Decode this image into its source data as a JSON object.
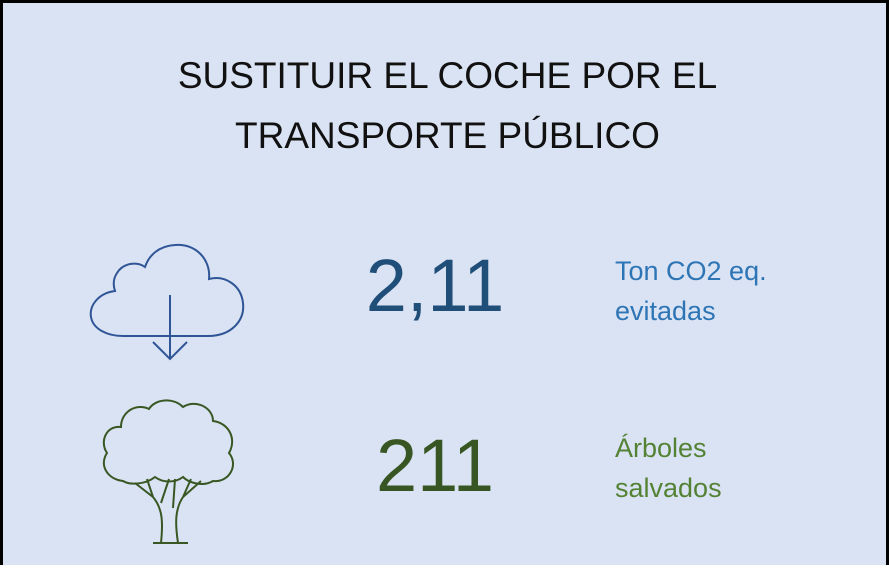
{
  "title": {
    "lines": [
      "SUSTITUIR EL COCHE POR EL",
      "TRANSPORTE PÚBLICO"
    ]
  },
  "metrics": [
    {
      "value": "2,11",
      "label": [
        "Ton CO2 eq.",
        "evitadas"
      ]
    },
    {
      "value": "211",
      "label": [
        "Árboles",
        "salvados"
      ]
    }
  ]
}
